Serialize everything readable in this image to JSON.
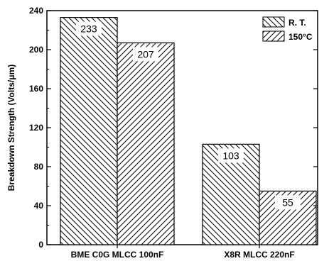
{
  "chart_data": {
    "type": "bar",
    "title": "",
    "xlabel": "",
    "ylabel": "Breakdown Strength (Volts/μm)",
    "categories": [
      "BME C0G MLCC 100nF",
      "X8R MLCC 220nF"
    ],
    "ylim": [
      0,
      240
    ],
    "yticks": [
      0,
      40,
      80,
      120,
      160,
      200,
      240
    ],
    "series": [
      {
        "name": "R. T.",
        "values": [
          233,
          103
        ],
        "pattern": "backslash-hatch",
        "data_labels": [
          "233",
          "103"
        ]
      },
      {
        "name": "150°C",
        "values": [
          207,
          55
        ],
        "pattern": "slash-hatch",
        "data_labels": [
          "207",
          "55"
        ]
      }
    ],
    "grid": false,
    "legend": "top-right",
    "colors": {
      "stroke": "#000000",
      "fill": "#ffffff"
    }
  }
}
